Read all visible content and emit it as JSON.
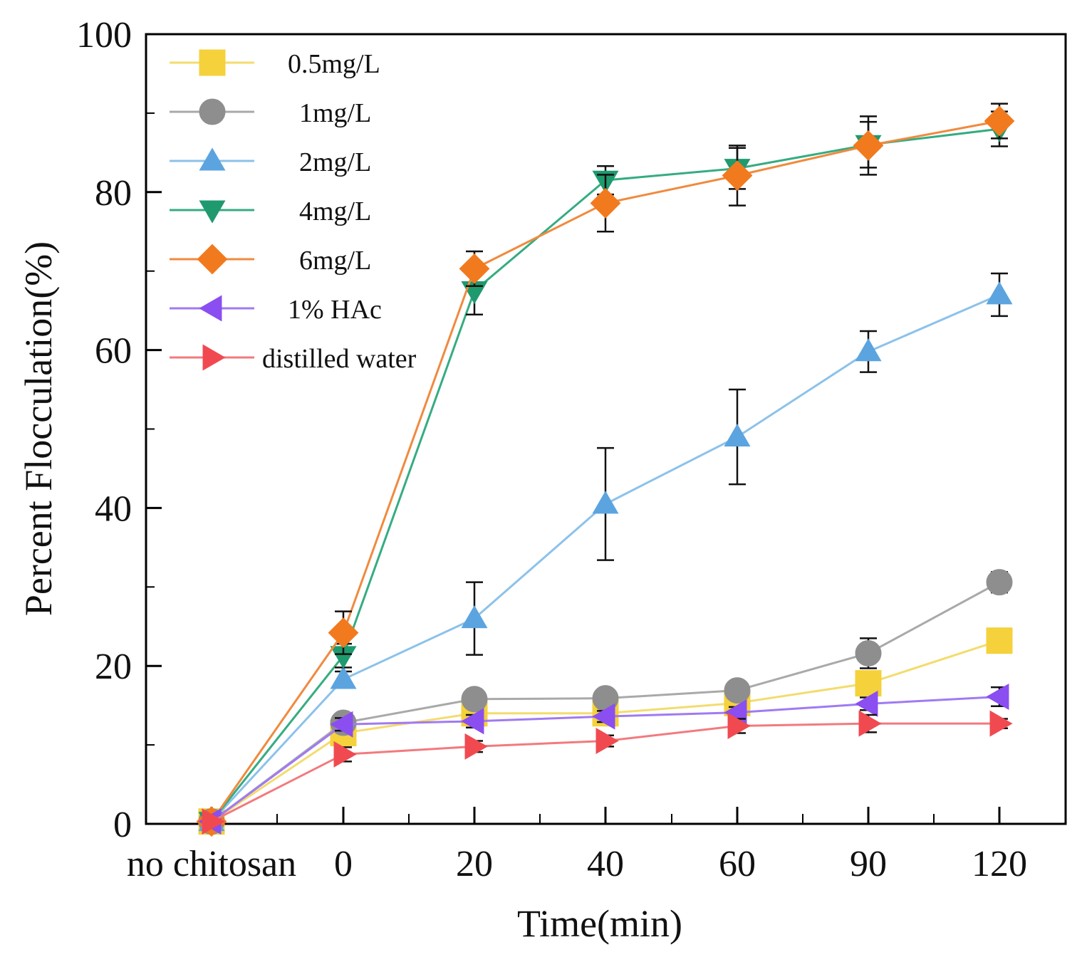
{
  "chart_data": {
    "type": "line",
    "title": "",
    "xlabel": "Time(min)",
    "ylabel": "Percent Flocculation(%)",
    "categories": [
      "no chitosan",
      "0",
      "20",
      "40",
      "60",
      "90",
      "120"
    ],
    "ylim": [
      0,
      100
    ],
    "yticks": [
      0,
      20,
      40,
      60,
      80,
      100
    ],
    "yticklabels": [
      "0",
      "20",
      "40",
      "60",
      "80",
      "100"
    ],
    "legend_position": "top-left",
    "grid": false,
    "series": [
      {
        "name": "0.5mg/L",
        "marker": "square",
        "color": "#F5D13B",
        "line_color": "#F3DC6E",
        "values": [
          0.3,
          11.5,
          14.0,
          14.0,
          15.3,
          17.8,
          23.2
        ],
        "errors": [
          0,
          1.0,
          0.8,
          0.8,
          0.7,
          1.3,
          1.2
        ]
      },
      {
        "name": "1mg/L",
        "marker": "circle",
        "color": "#8E8E8E",
        "line_color": "#A9A9A9",
        "values": [
          0.3,
          12.8,
          15.8,
          15.9,
          16.9,
          21.6,
          30.6
        ],
        "errors": [
          0,
          0.8,
          0.7,
          0.6,
          0.6,
          1.9,
          1.3
        ]
      },
      {
        "name": "2mg/L",
        "marker": "triangle-up",
        "color": "#5BA4E0",
        "line_color": "#8CC2EA",
        "values": [
          0.3,
          18.3,
          26.0,
          40.5,
          49.0,
          59.8,
          67.0
        ],
        "errors": [
          0,
          1.0,
          4.6,
          7.1,
          6.0,
          2.6,
          2.7
        ]
      },
      {
        "name": "4mg/L",
        "marker": "triangle-down",
        "color": "#1E9A6E",
        "line_color": "#35AC82",
        "values": [
          0.3,
          21.3,
          67.5,
          81.5,
          83.0,
          86.0,
          88.0
        ],
        "errors": [
          0,
          1.5,
          3.0,
          1.8,
          2.6,
          2.9,
          2.2
        ]
      },
      {
        "name": "6mg/L",
        "marker": "diamond",
        "color": "#F27A1E",
        "line_color": "#F08A3E",
        "values": [
          0.3,
          24.2,
          70.3,
          78.6,
          82.1,
          85.9,
          89.0
        ],
        "errors": [
          0,
          2.7,
          2.2,
          3.6,
          3.8,
          3.7,
          2.2
        ]
      },
      {
        "name": "1% HAc",
        "marker": "triangle-left",
        "color": "#8B4EF0",
        "line_color": "#A07AF2",
        "values": [
          0.3,
          12.6,
          13.0,
          13.6,
          14.1,
          15.2,
          16.1
        ],
        "errors": [
          0,
          0.8,
          0.8,
          0.7,
          0.7,
          0.8,
          1.2
        ]
      },
      {
        "name": "distilled water",
        "marker": "triangle-right",
        "color": "#F04A50",
        "line_color": "#F27A7E",
        "values": [
          0.3,
          8.8,
          9.8,
          10.5,
          12.4,
          12.7,
          12.7
        ],
        "errors": [
          0,
          0.9,
          0.7,
          0.7,
          0.9,
          1.1,
          0.6
        ]
      }
    ]
  }
}
